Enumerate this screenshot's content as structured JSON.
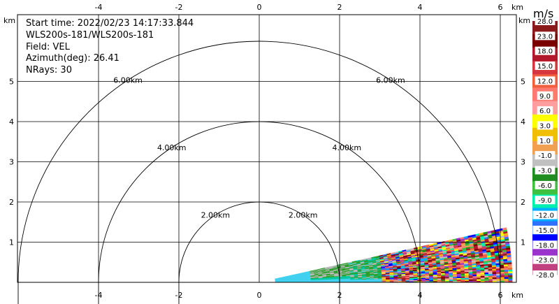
{
  "info": {
    "start_time": "Start time: 2022/02/23 14:17:33.844",
    "instrument": "WLS200s-181/WLS200s-181",
    "field": "Field: VEL",
    "azimuth": "Azimuth(deg): 26.41",
    "nrays": "NRays: 30"
  },
  "axes": {
    "x_unit": "km",
    "y_unit": "km",
    "x_ticks": [
      -4,
      -2,
      0,
      2,
      4,
      6
    ],
    "y_ticks": [
      1,
      2,
      3,
      4,
      5
    ],
    "xlim": [
      -6,
      6.4
    ],
    "ylim": [
      0,
      5.95
    ],
    "grid": true
  },
  "range_rings": [
    {
      "radius_km": 2,
      "label": "2.00km"
    },
    {
      "radius_km": 4,
      "label": "4.00km"
    },
    {
      "radius_km": 6,
      "label": "6.00km"
    }
  ],
  "sector": {
    "start_elevation_deg": 0,
    "end_elevation_deg": 12.5,
    "min_range_km": 0.4,
    "max_range_km": 6.3
  },
  "colorbar": {
    "title": "m/s",
    "ticks": [
      "28.0",
      "23.0",
      "18.0",
      "15.0",
      "12.0",
      "9.0",
      "6.0",
      "3.0",
      "1.0",
      "-1.0",
      "-3.0",
      "-6.0",
      "-9.0",
      "-12.0",
      "-15.0",
      "-18.0",
      "-23.0",
      "-28.0"
    ],
    "colors": [
      "#8b1a1a",
      "#7a0000",
      "#b2182b",
      "#d6373d",
      "#f0603f",
      "#ff7a70",
      "#ff9e9e",
      "#ffff00",
      "#f0c000",
      "#f0a050",
      "#c0c0c0",
      "#1e8c1e",
      "#40c040",
      "#00f0b0",
      "#00b0ff",
      "#3070ff",
      "#0000ff",
      "#9933cc",
      "#c04080"
    ]
  },
  "colors": {
    "near_cyan": "#40d0f0",
    "teal": "#00c8a0",
    "green": "#2aa02a",
    "gray": "#b8b8b8"
  }
}
